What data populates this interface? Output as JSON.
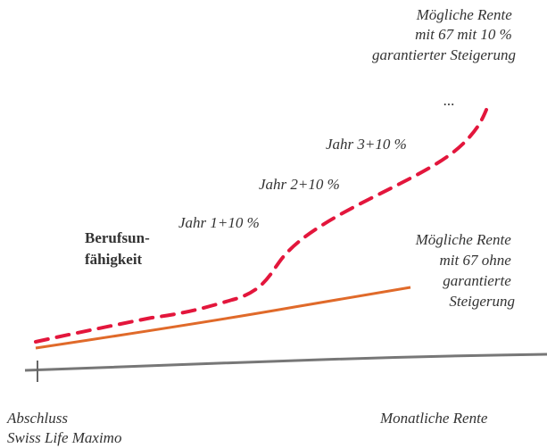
{
  "labels": {
    "top_right": [
      "Mögliche Rente",
      "mit 67 mit 10 %",
      "garantierter Steigerung"
    ],
    "ellipsis": "...",
    "year3": "Jahr 3+10 %",
    "year2": "Jahr 2+10 %",
    "year1": "Jahr 1+10 %",
    "disability": [
      "Berufsun-",
      "fähigkeit"
    ],
    "right_middle": [
      "Mögliche Rente",
      "mit 67 ohne",
      "garantierte",
      "Steigerung"
    ],
    "bottom_left": [
      "Abschluss",
      "Swiss Life Maximo"
    ],
    "bottom_right": "Monatliche Rente"
  }
}
